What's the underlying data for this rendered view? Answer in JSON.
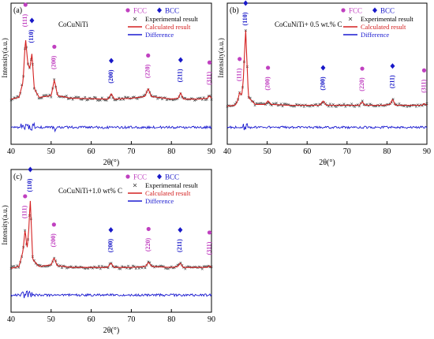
{
  "figure_title": "",
  "panels": [
    {
      "letter": "(a)",
      "label": "CoCuNiTi",
      "peaks_fcc": [
        {
          "x": 43.6,
          "hkl": "(111)"
        },
        {
          "x": 50.8,
          "hkl": "(200)"
        },
        {
          "x": 74.2,
          "hkl": "(220)"
        },
        {
          "x": 89.5,
          "hkl": "(311)"
        }
      ],
      "peaks_bcc": [
        {
          "x": 45.2,
          "hkl": "(110)"
        },
        {
          "x": 65.0,
          "hkl": "(200)"
        },
        {
          "x": 82.3,
          "hkl": "(211)"
        }
      ]
    },
    {
      "letter": "(b)",
      "label": "CoCuNiTi+ 0.5 wt.% C",
      "peaks_fcc": [
        {
          "x": 43.1,
          "hkl": "(111)"
        },
        {
          "x": 50.2,
          "hkl": "(200)"
        },
        {
          "x": 73.8,
          "hkl": "(220)"
        },
        {
          "x": 89.3,
          "hkl": "(311)"
        }
      ],
      "peaks_bcc": [
        {
          "x": 44.6,
          "hkl": "(110)"
        },
        {
          "x": 64.0,
          "hkl": "(200)"
        },
        {
          "x": 81.4,
          "hkl": "(211)"
        }
      ]
    },
    {
      "letter": "(c)",
      "label": "CoCuNiTi+1.0 wt% C",
      "peaks_fcc": [
        {
          "x": 43.5,
          "hkl": "(111)"
        },
        {
          "x": 50.7,
          "hkl": "(200)"
        },
        {
          "x": 74.3,
          "hkl": "(220)"
        },
        {
          "x": 89.5,
          "hkl": "(311)"
        }
      ],
      "peaks_bcc": [
        {
          "x": 44.8,
          "hkl": "(110)"
        },
        {
          "x": 64.9,
          "hkl": "(200)"
        },
        {
          "x": 82.2,
          "hkl": "(211)"
        }
      ]
    }
  ],
  "legend": {
    "fcc": "FCC",
    "bcc": "BCC",
    "experimental": "Experimental result",
    "calculated": "Calculated result",
    "difference": "Difference"
  },
  "colors": {
    "fcc": "#c040c0",
    "bcc": "#1818c8",
    "calculated": "#d42020",
    "experimental": "#404040",
    "difference": "#1a1ad0"
  },
  "chart_data": [
    {
      "type": "line",
      "title": "",
      "xlabel": "2θ(°)",
      "ylabel": "Intensity(a.u.)",
      "xlim": [
        40,
        90
      ],
      "xticks": [
        40,
        50,
        60,
        70,
        80,
        90
      ],
      "legend_position": "top-right",
      "series": [
        {
          "name": "Experimental result",
          "style": "x-markers"
        },
        {
          "name": "Calculated result",
          "style": "solid-line"
        },
        {
          "name": "Difference",
          "style": "solid-line"
        }
      ],
      "intensity_profile": {
        "x": [
          40,
          42,
          43.0,
          43.6,
          44.2,
          44.7,
          45.2,
          45.8,
          47,
          50.0,
          50.8,
          51.6,
          55,
          64.2,
          65.0,
          65.8,
          70,
          73.4,
          74.2,
          75.0,
          80,
          81.7,
          82.3,
          83.0,
          87,
          89.0,
          89.5,
          90
        ],
        "y": [
          0.2,
          0.22,
          0.4,
          0.9,
          0.6,
          0.55,
          0.72,
          0.32,
          0.22,
          0.24,
          0.42,
          0.24,
          0.21,
          0.2,
          0.26,
          0.2,
          0.21,
          0.23,
          0.32,
          0.23,
          0.2,
          0.21,
          0.27,
          0.2,
          0.2,
          0.21,
          0.24,
          0.21
        ]
      }
    },
    {
      "type": "line",
      "title": "",
      "xlabel": "2θ(°)",
      "ylabel": "Intensity(a.u.)",
      "xlim": [
        40,
        90
      ],
      "xticks": [
        40,
        50,
        60,
        70,
        80,
        90
      ],
      "legend_position": "top-right",
      "series": [
        {
          "name": "Experimental result",
          "style": "x-markers"
        },
        {
          "name": "Calculated result",
          "style": "solid-line"
        },
        {
          "name": "Difference",
          "style": "solid-line"
        }
      ],
      "intensity_profile": {
        "x": [
          40,
          42,
          42.6,
          43.1,
          43.6,
          44.0,
          44.6,
          45.3,
          47,
          49.5,
          50.2,
          51.0,
          55,
          63.2,
          64.0,
          64.8,
          70,
          73.1,
          73.8,
          74.5,
          79,
          80.8,
          81.4,
          82.1,
          87,
          88.8,
          89.3,
          90
        ],
        "y": [
          0.12,
          0.13,
          0.18,
          0.28,
          0.24,
          0.4,
          1.0,
          0.22,
          0.14,
          0.14,
          0.18,
          0.14,
          0.13,
          0.13,
          0.18,
          0.13,
          0.13,
          0.13,
          0.17,
          0.13,
          0.13,
          0.14,
          0.2,
          0.13,
          0.13,
          0.13,
          0.15,
          0.13
        ]
      }
    },
    {
      "type": "line",
      "title": "",
      "xlabel": "2θ(°)",
      "ylabel": "Intensity(a.u.)",
      "xlim": [
        40,
        90
      ],
      "xticks": [
        40,
        50,
        60,
        70,
        80,
        90
      ],
      "legend_position": "top-right",
      "series": [
        {
          "name": "Experimental result",
          "style": "x-markers"
        },
        {
          "name": "Calculated result",
          "style": "solid-line"
        },
        {
          "name": "Difference",
          "style": "solid-line"
        }
      ],
      "intensity_profile": {
        "x": [
          40,
          42,
          43.0,
          43.5,
          44.0,
          44.4,
          44.8,
          45.4,
          47,
          50.0,
          50.7,
          51.5,
          55,
          64.1,
          64.9,
          65.7,
          70,
          73.5,
          74.3,
          75.1,
          80,
          81.6,
          82.2,
          82.9,
          87,
          89.0,
          89.5,
          90
        ],
        "y": [
          0.18,
          0.2,
          0.38,
          0.62,
          0.4,
          0.6,
          0.95,
          0.28,
          0.2,
          0.22,
          0.3,
          0.21,
          0.19,
          0.19,
          0.24,
          0.19,
          0.19,
          0.2,
          0.25,
          0.2,
          0.19,
          0.2,
          0.24,
          0.19,
          0.19,
          0.19,
          0.21,
          0.19
        ]
      }
    }
  ]
}
